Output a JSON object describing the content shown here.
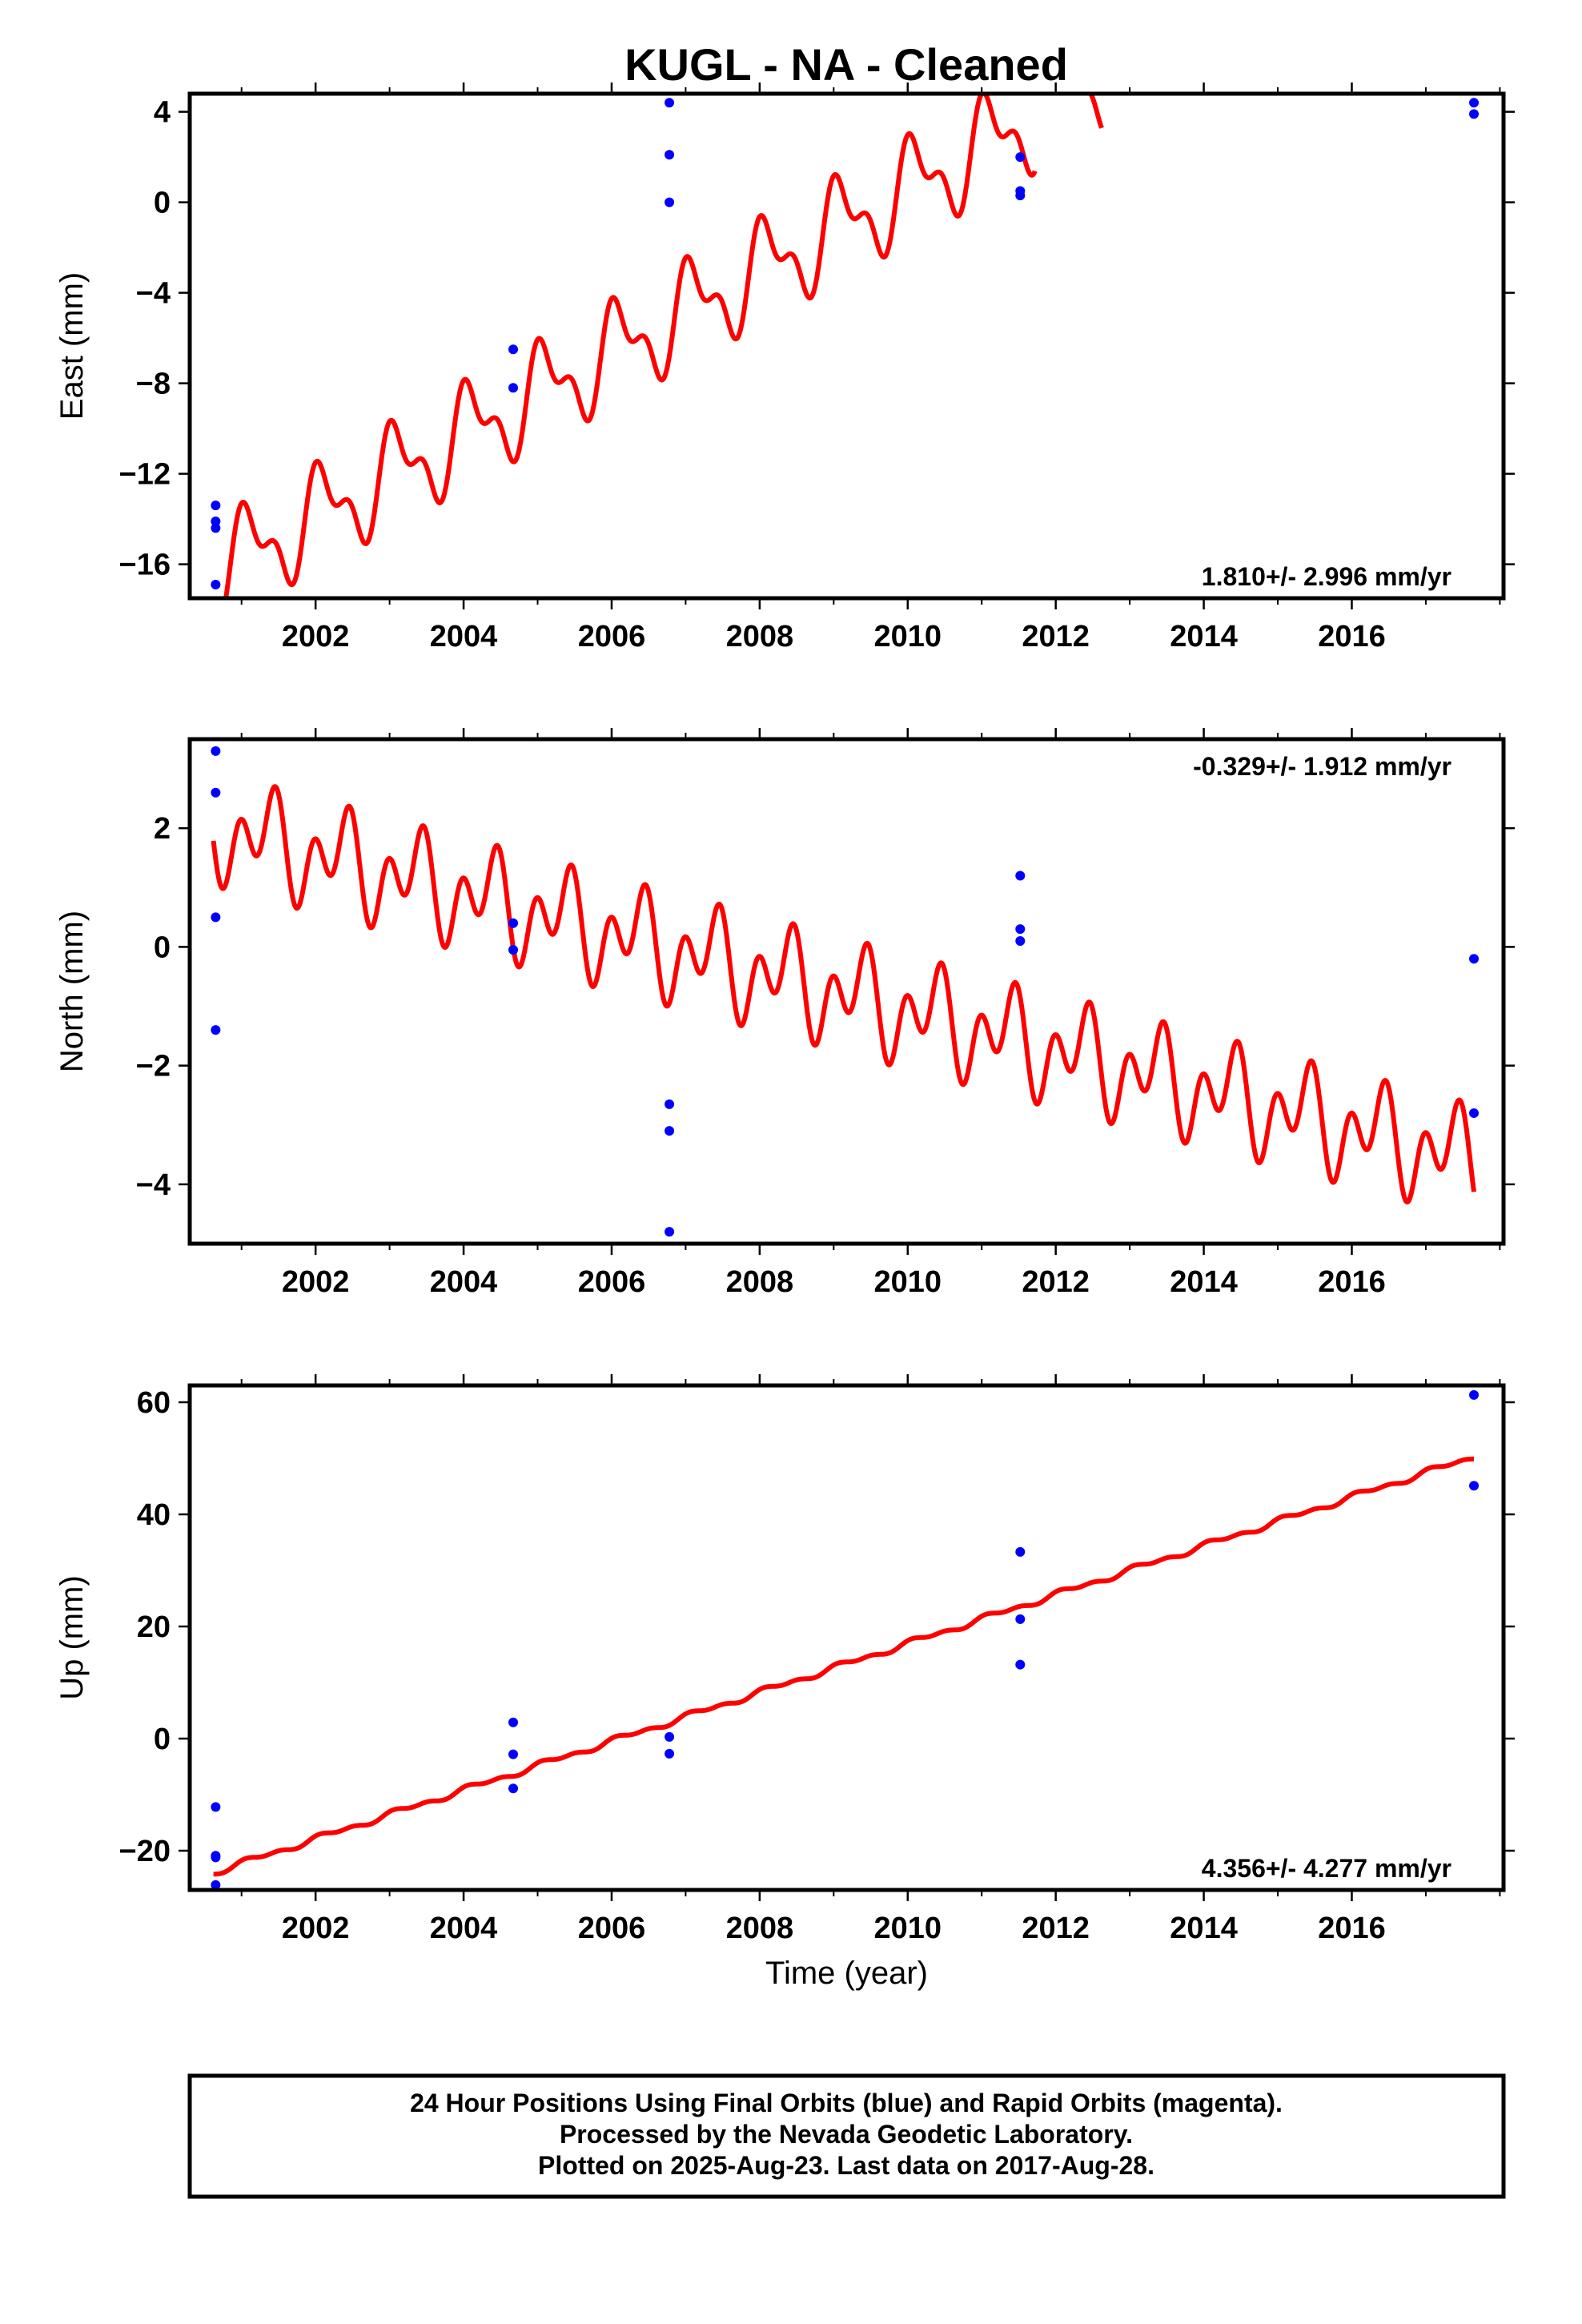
{
  "title": "KUGL  - NA - Cleaned",
  "colors": {
    "model": "#ff0000",
    "final_orbits": "#0000ff",
    "frame": "#000000"
  },
  "footer": {
    "line1": "24 Hour Positions Using Final Orbits (blue) and Rapid Orbits (magenta).",
    "line2": "Processed by the Nevada Geodetic Laboratory.",
    "line3": "Plotted on 2025-Aug-23. Last data on 2017-Aug-28."
  },
  "chart_data": [
    {
      "type": "scatter",
      "panel": "east",
      "title": "",
      "xlabel": "",
      "ylabel": "East (mm)",
      "xlim": [
        2000.3,
        2018.05
      ],
      "ylim": [
        -17.5,
        4.8
      ],
      "xticks": [
        2002,
        2004,
        2006,
        2008,
        2010,
        2012,
        2014,
        2016
      ],
      "yticks": [
        -16,
        -12,
        -8,
        -4,
        0,
        4
      ],
      "ytick_labels": [
        "−16",
        "−12",
        "−8",
        "−4",
        "0",
        "4"
      ],
      "rate_text": "1.810+/- 2.996 mm/yr",
      "rate_position": "bottom-right",
      "grid": false,
      "series": [
        {
          "kind": "points",
          "color": "#0000ff",
          "points": [
            [
              2000.65,
              -13.4
            ],
            [
              2000.65,
              -14.1
            ],
            [
              2000.65,
              -14.4
            ],
            [
              2000.65,
              -16.9
            ],
            [
              2004.67,
              -6.5
            ],
            [
              2004.67,
              -8.2
            ],
            [
              2006.78,
              4.4
            ],
            [
              2006.78,
              2.1
            ],
            [
              2006.78,
              0.0
            ],
            [
              2011.52,
              2.0
            ],
            [
              2011.52,
              0.5
            ],
            [
              2011.52,
              0.3
            ],
            [
              2017.65,
              4.4
            ],
            [
              2017.65,
              3.9
            ]
          ]
        },
        {
          "kind": "model",
          "color": "#ff0000",
          "segments": [
            [
              2000.62,
              2011.72
            ],
            [
              2012.45,
              2012.62
            ]
          ],
          "start_value": -16.4,
          "rate_per_year": 1.81,
          "annual_amplitude": 1.8,
          "annual_phase_year": 2000.85,
          "semiannual_amplitude": 1.0,
          "semiannual_phase_year": 2000.85
        }
      ]
    },
    {
      "type": "scatter",
      "panel": "north",
      "title": "",
      "xlabel": "",
      "ylabel": "North (mm)",
      "xlim": [
        2000.3,
        2018.05
      ],
      "ylim": [
        -5.0,
        3.5
      ],
      "xticks": [
        2002,
        2004,
        2006,
        2008,
        2010,
        2012,
        2014,
        2016
      ],
      "yticks": [
        -4,
        -2,
        0,
        2
      ],
      "ytick_labels": [
        "−4",
        "−2",
        "0",
        "2"
      ],
      "rate_text": "-0.329+/- 1.912 mm/yr",
      "rate_position": "top-right",
      "grid": false,
      "series": [
        {
          "kind": "points",
          "color": "#0000ff",
          "points": [
            [
              2000.65,
              3.3
            ],
            [
              2000.65,
              2.6
            ],
            [
              2000.65,
              0.5
            ],
            [
              2000.65,
              -1.4
            ],
            [
              2004.67,
              0.4
            ],
            [
              2004.67,
              -0.05
            ],
            [
              2006.78,
              -2.65
            ],
            [
              2006.78,
              -3.1
            ],
            [
              2006.78,
              -4.8
            ],
            [
              2011.52,
              1.2
            ],
            [
              2011.52,
              0.3
            ],
            [
              2011.52,
              0.1
            ],
            [
              2017.65,
              -0.2
            ],
            [
              2017.65,
              -2.8
            ]
          ]
        },
        {
          "kind": "model",
          "color": "#ff0000",
          "segments": [
            [
              2000.62,
              2017.65
            ]
          ],
          "start_value": 2.0,
          "rate_per_year": -0.33,
          "annual_amplitude": 0.5,
          "annual_phase_year": 2001.1,
          "semiannual_amplitude": 0.6,
          "semiannual_phase_year": 2000.85
        }
      ]
    },
    {
      "type": "scatter",
      "panel": "up",
      "title": "",
      "xlabel": "Time (year)",
      "ylabel": "Up (mm)",
      "xlim": [
        2000.3,
        2018.05
      ],
      "ylim": [
        -27,
        63
      ],
      "xticks": [
        2002,
        2004,
        2006,
        2008,
        2010,
        2012,
        2014,
        2016
      ],
      "yticks": [
        -20,
        0,
        20,
        40,
        60
      ],
      "ytick_labels": [
        "−20",
        "0",
        "20",
        "40",
        "60"
      ],
      "rate_text": "4.356+/- 4.277 mm/yr",
      "rate_position": "bottom-right",
      "grid": false,
      "series": [
        {
          "kind": "points",
          "color": "#0000ff",
          "points": [
            [
              2000.65,
              -12.2
            ],
            [
              2000.65,
              -20.9
            ],
            [
              2000.65,
              -21.2
            ],
            [
              2000.65,
              -26.1
            ],
            [
              2004.67,
              2.9
            ],
            [
              2004.67,
              -2.8
            ],
            [
              2004.67,
              -8.9
            ],
            [
              2006.78,
              0.3
            ],
            [
              2006.78,
              -2.7
            ],
            [
              2011.52,
              33.3
            ],
            [
              2011.52,
              21.3
            ],
            [
              2011.52,
              13.2
            ],
            [
              2017.65,
              61.3
            ],
            [
              2017.65,
              45.1
            ]
          ]
        },
        {
          "kind": "model",
          "color": "#ff0000",
          "segments": [
            [
              2000.62,
              2017.65
            ]
          ],
          "start_value": -23.9,
          "rate_per_year": 4.356,
          "annual_amplitude": 0.4,
          "annual_phase_year": 2000.9,
          "semiannual_amplitude": 0.3,
          "semiannual_phase_year": 2000.9
        }
      ]
    }
  ]
}
